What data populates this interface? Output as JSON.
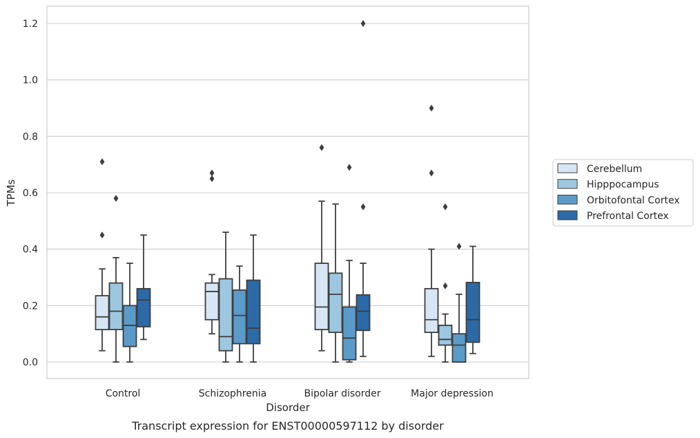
{
  "chart_data": {
    "type": "box",
    "caption": "Transcript expression for ENST00000597112 by disorder",
    "xlabel": "Disorder",
    "ylabel": "TPMs",
    "ylim": [
      -0.06,
      1.26
    ],
    "yticks": [
      "0.0",
      "0.2",
      "0.4",
      "0.6",
      "0.8",
      "1.0",
      "1.2"
    ],
    "grid": "horizontal",
    "legend_position": "right",
    "categories": [
      "Control",
      "Schizophrenia",
      "Bipolar disorder",
      "Major depression"
    ],
    "series": [
      {
        "name": "Cerebellum",
        "color": "#d7e6f5",
        "boxes": [
          {
            "whisker_low": 0.04,
            "q1": 0.115,
            "median": 0.16,
            "q3": 0.235,
            "whisker_high": 0.33,
            "outliers": [
              0.45,
              0.71
            ]
          },
          {
            "whisker_low": 0.1,
            "q1": 0.15,
            "median": 0.25,
            "q3": 0.28,
            "whisker_high": 0.31,
            "outliers": [
              0.65,
              0.67
            ]
          },
          {
            "whisker_low": 0.04,
            "q1": 0.115,
            "median": 0.195,
            "q3": 0.35,
            "whisker_high": 0.57,
            "outliers": [
              0.76
            ]
          },
          {
            "whisker_low": 0.02,
            "q1": 0.105,
            "median": 0.15,
            "q3": 0.26,
            "whisker_high": 0.4,
            "outliers": [
              0.67,
              0.9
            ]
          }
        ]
      },
      {
        "name": "Hipppocampus",
        "color": "#9dc7df",
        "boxes": [
          {
            "whisker_low": 0.0,
            "q1": 0.115,
            "median": 0.18,
            "q3": 0.28,
            "whisker_high": 0.37,
            "outliers": [
              0.58
            ]
          },
          {
            "whisker_low": 0.0,
            "q1": 0.04,
            "median": 0.09,
            "q3": 0.295,
            "whisker_high": 0.46,
            "outliers": []
          },
          {
            "whisker_low": 0.0,
            "q1": 0.105,
            "median": 0.24,
            "q3": 0.315,
            "whisker_high": 0.56,
            "outliers": []
          },
          {
            "whisker_low": 0.0,
            "q1": 0.06,
            "median": 0.08,
            "q3": 0.13,
            "whisker_high": 0.17,
            "outliers": [
              0.27,
              0.55
            ]
          }
        ]
      },
      {
        "name": "Orbitofontal Cortex",
        "color": "#5b9bc9",
        "boxes": [
          {
            "whisker_low": 0.0,
            "q1": 0.055,
            "median": 0.13,
            "q3": 0.2,
            "whisker_high": 0.35,
            "outliers": []
          },
          {
            "whisker_low": 0.0,
            "q1": 0.065,
            "median": 0.165,
            "q3": 0.255,
            "whisker_high": 0.34,
            "outliers": []
          },
          {
            "whisker_low": 0.0,
            "q1": 0.008,
            "median": 0.085,
            "q3": 0.195,
            "whisker_high": 0.36,
            "outliers": [
              0.69
            ]
          },
          {
            "whisker_low": 0.0,
            "q1": 0.0,
            "median": 0.06,
            "q3": 0.1,
            "whisker_high": 0.24,
            "outliers": [
              0.41
            ]
          }
        ]
      },
      {
        "name": "Prefrontal Cortex",
        "color": "#2b6aa7",
        "boxes": [
          {
            "whisker_low": 0.08,
            "q1": 0.125,
            "median": 0.22,
            "q3": 0.26,
            "whisker_high": 0.45,
            "outliers": []
          },
          {
            "whisker_low": 0.0,
            "q1": 0.065,
            "median": 0.12,
            "q3": 0.29,
            "whisker_high": 0.45,
            "outliers": []
          },
          {
            "whisker_low": 0.02,
            "q1": 0.112,
            "median": 0.18,
            "q3": 0.238,
            "whisker_high": 0.35,
            "outliers": [
              0.55,
              1.2
            ]
          },
          {
            "whisker_low": 0.03,
            "q1": 0.07,
            "median": 0.15,
            "q3": 0.282,
            "whisker_high": 0.41,
            "outliers": []
          }
        ]
      }
    ]
  }
}
